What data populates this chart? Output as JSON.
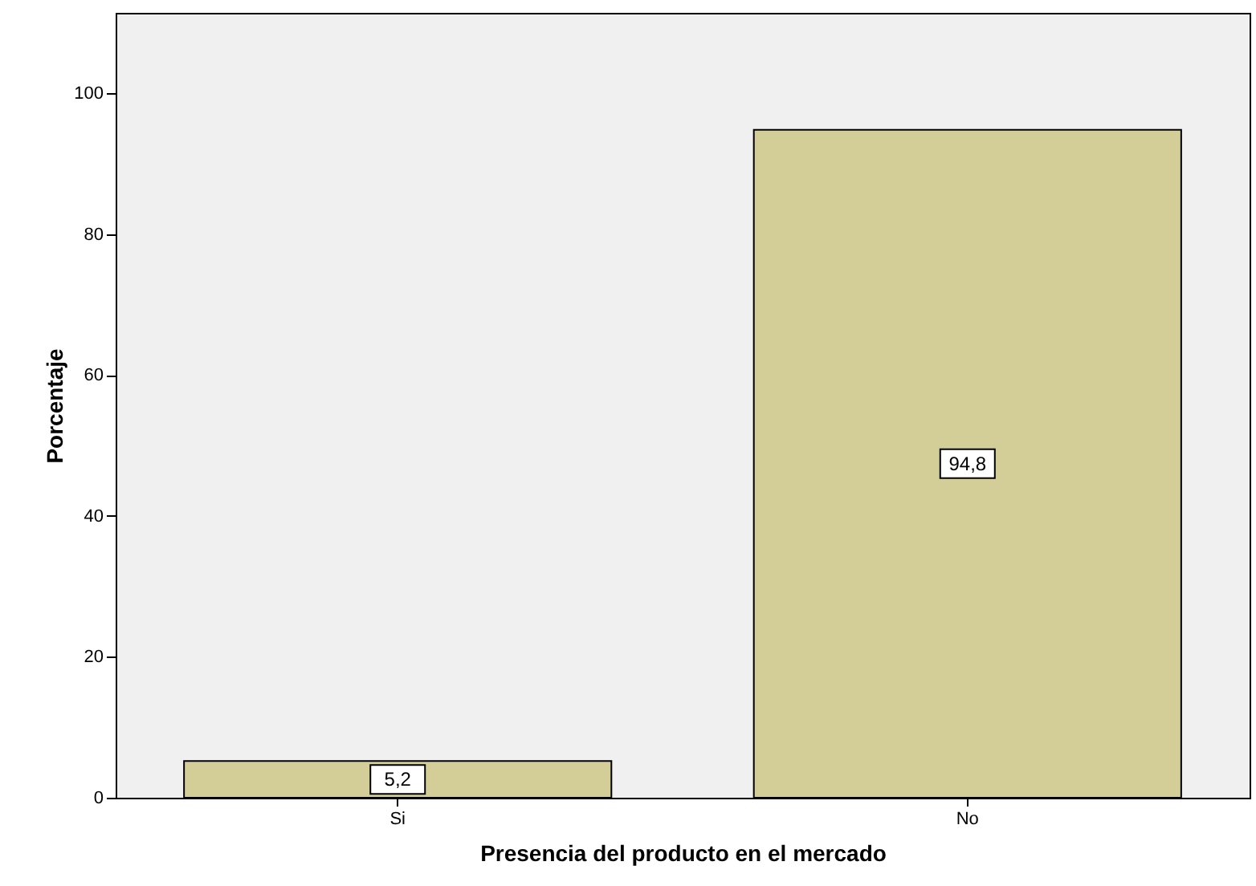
{
  "chart_data": {
    "type": "bar",
    "xlabel": "Presencia del producto en el mercado",
    "ylabel": "Porcentaje",
    "categories": [
      "Si",
      "No"
    ],
    "values": [
      5.2,
      94.8
    ],
    "value_labels": [
      "5,2",
      "94,8"
    ],
    "color": "#d3ce98",
    "ylim": [
      0,
      111.4
    ],
    "yticks": [
      0,
      20,
      40,
      60,
      80,
      100
    ],
    "grid": false
  }
}
